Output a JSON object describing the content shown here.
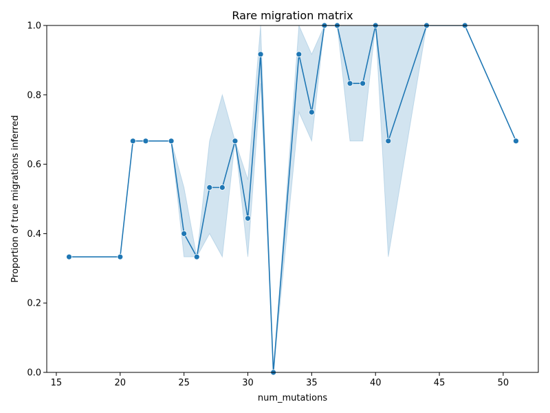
{
  "chart_data": {
    "type": "line",
    "title": "Rare migration matrix",
    "xlabel": "num_mutations",
    "ylabel": "Proportion of true migrations inferred",
    "xlim": [
      14.25,
      52.75
    ],
    "ylim": [
      0.0,
      1.0
    ],
    "x_ticks": [
      15,
      20,
      25,
      30,
      35,
      40,
      45,
      50
    ],
    "x_tick_labels": [
      "15",
      "20",
      "25",
      "30",
      "35",
      "40",
      "45",
      "50"
    ],
    "y_ticks": [
      0.0,
      0.2,
      0.4,
      0.6,
      0.8,
      1.0
    ],
    "y_tick_labels": [
      "0.0",
      "0.2",
      "0.4",
      "0.6",
      "0.8",
      "1.0"
    ],
    "grid": false,
    "markers": true,
    "colors": {
      "line": "#1f77b4",
      "band": "#1f77b4"
    },
    "series": [
      {
        "x": [
          16,
          20,
          21,
          22,
          24,
          25,
          26,
          27,
          28,
          29,
          30,
          31,
          32,
          34,
          35,
          36,
          37,
          38,
          39,
          40,
          41,
          44,
          47,
          51
        ],
        "y": [
          0.333,
          0.333,
          0.667,
          0.667,
          0.667,
          0.4,
          0.333,
          0.533,
          0.533,
          0.667,
          0.444,
          0.917,
          0.0,
          0.917,
          0.75,
          1.0,
          1.0,
          0.833,
          0.833,
          1.0,
          0.667,
          1.0,
          1.0,
          0.667
        ],
        "ci_low": [
          0.333,
          0.333,
          0.667,
          0.667,
          0.667,
          0.333,
          0.333,
          0.4,
          0.333,
          0.667,
          0.333,
          0.833,
          0.0,
          0.75,
          0.667,
          1.0,
          1.0,
          0.667,
          0.667,
          1.0,
          0.333,
          1.0,
          1.0,
          0.667
        ],
        "ci_high": [
          0.333,
          0.333,
          0.667,
          0.667,
          0.667,
          0.533,
          0.333,
          0.667,
          0.8,
          0.667,
          0.556,
          1.0,
          0.0,
          1.0,
          0.917,
          1.0,
          1.0,
          1.0,
          1.0,
          1.0,
          1.0,
          1.0,
          1.0,
          0.667
        ]
      }
    ]
  }
}
